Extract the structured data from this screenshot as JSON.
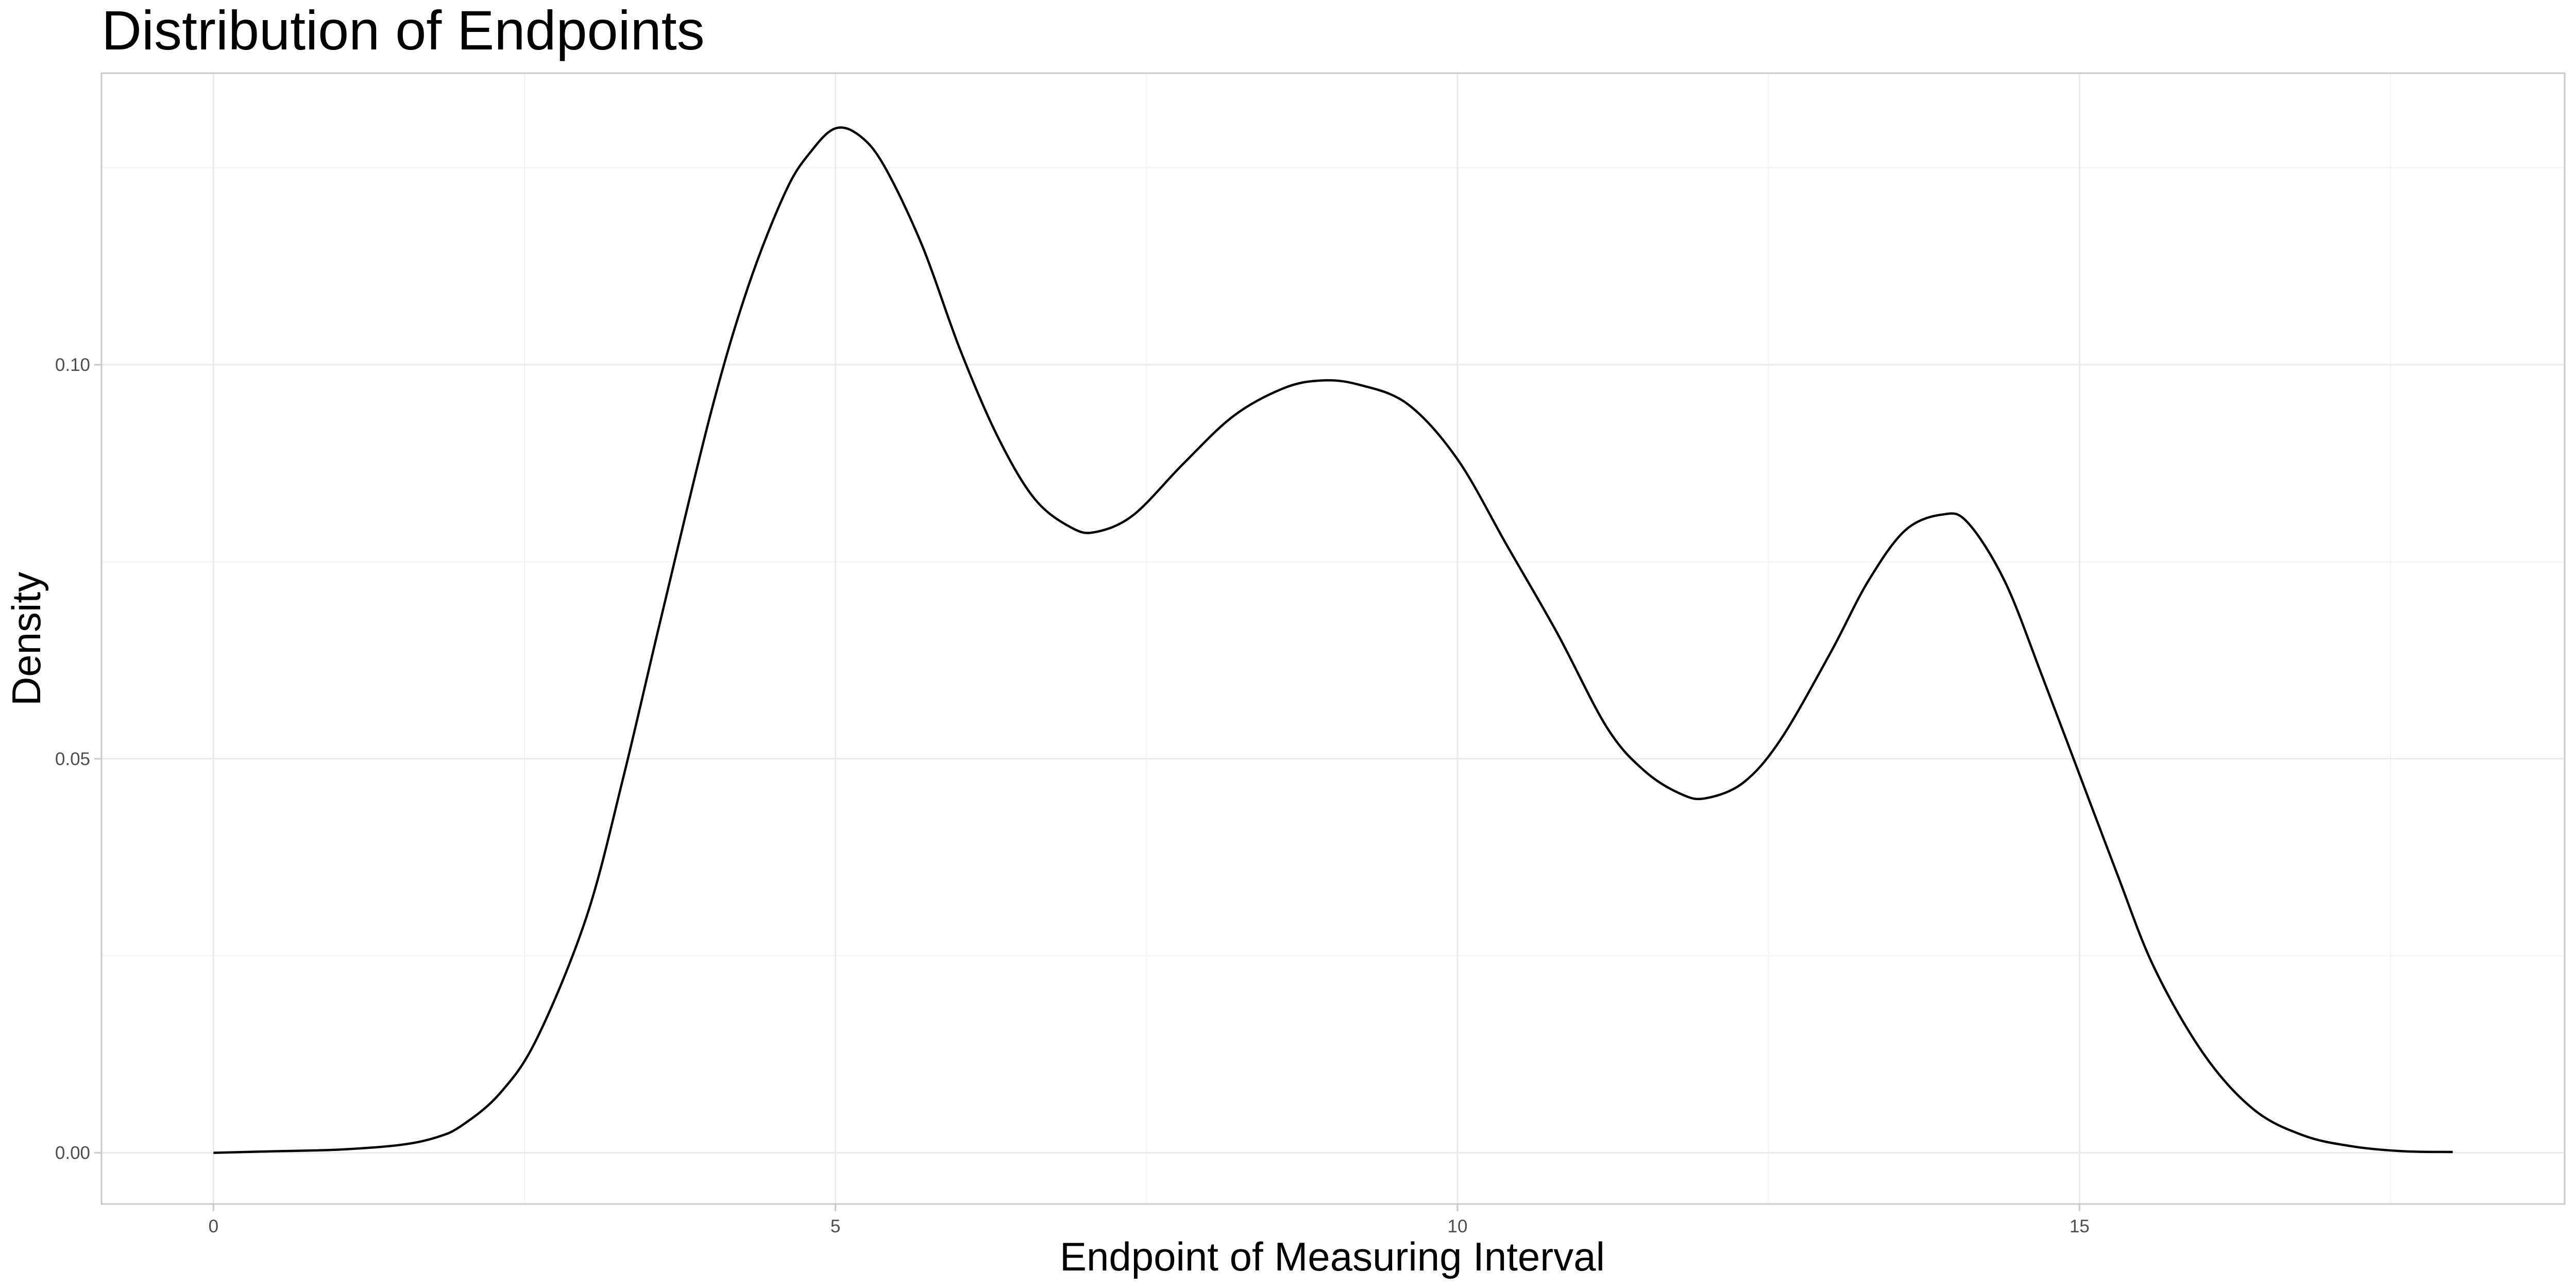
{
  "chart_data": {
    "type": "line",
    "title": "Distribution of Endpoints",
    "xlabel": "Endpoint of Measuring Interval",
    "ylabel": "Density",
    "xlim": [
      -0.9,
      18.9
    ],
    "ylim": [
      -0.0065,
      0.137
    ],
    "x_ticks": [
      0,
      5,
      10,
      15
    ],
    "x_tick_labels": [
      "0",
      "5",
      "10",
      "15"
    ],
    "y_ticks": [
      0.0,
      0.05,
      0.1
    ],
    "y_tick_labels": [
      "0.00",
      "0.05",
      "0.10"
    ],
    "x_minor_ticks": [
      2.5,
      7.5,
      12.5,
      17.5
    ],
    "y_minor_ticks": [
      0.025,
      0.075,
      0.125
    ],
    "grid": true,
    "line_color": "#000000",
    "series": [
      {
        "x": [
          0,
          0.5,
          1.0,
          1.5,
          1.8,
          2.0,
          2.3,
          2.6,
          3.0,
          3.3,
          3.6,
          4.0,
          4.3,
          4.6,
          4.8,
          5.0,
          5.2,
          5.4,
          5.7,
          6.0,
          6.3,
          6.6,
          6.9,
          7.1,
          7.4,
          7.8,
          8.2,
          8.6,
          8.9,
          9.2,
          9.6,
          10.0,
          10.4,
          10.8,
          11.2,
          11.5,
          11.8,
          12.0,
          12.3,
          12.6,
          13.0,
          13.3,
          13.6,
          13.9,
          14.1,
          14.4,
          14.7,
          15.0,
          15.3,
          15.6,
          16.0,
          16.4,
          16.8,
          17.2,
          17.6,
          18.0
        ],
        "y": [
          0.0,
          0.0002,
          0.0004,
          0.001,
          0.002,
          0.0035,
          0.0075,
          0.0145,
          0.03,
          0.048,
          0.068,
          0.094,
          0.11,
          0.122,
          0.127,
          0.13,
          0.129,
          0.125,
          0.115,
          0.102,
          0.091,
          0.083,
          0.0793,
          0.0788,
          0.081,
          0.0875,
          0.0935,
          0.097,
          0.098,
          0.0975,
          0.095,
          0.088,
          0.077,
          0.066,
          0.054,
          0.0485,
          0.0455,
          0.045,
          0.047,
          0.0525,
          0.0635,
          0.0725,
          0.079,
          0.081,
          0.08,
          0.0725,
          0.0605,
          0.048,
          0.0355,
          0.0235,
          0.0125,
          0.0055,
          0.0022,
          0.0008,
          0.0002,
          0.0001
        ]
      }
    ]
  }
}
